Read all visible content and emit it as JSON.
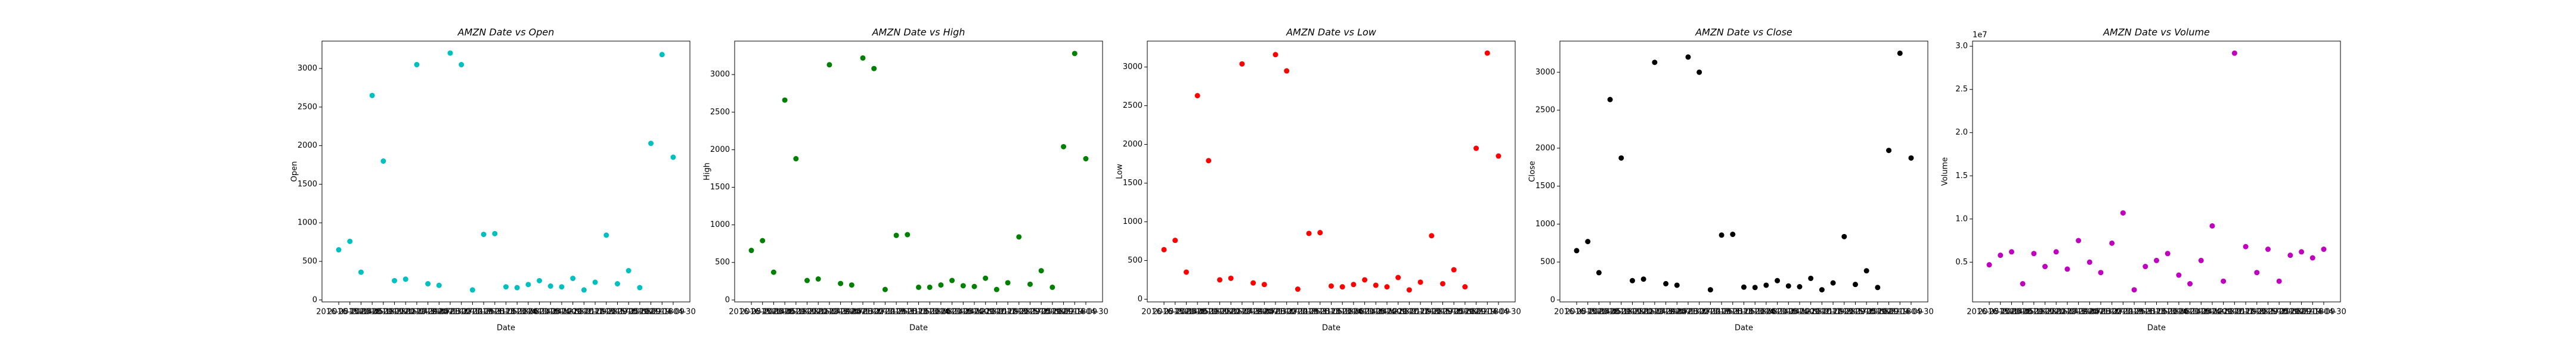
{
  "chart_data": [
    {
      "type": "scatter",
      "title": "AMZN Date vs Open",
      "xlabel": "Date",
      "ylabel": "Open",
      "color": "#00bfbf",
      "categories": [
        "2016-05-20",
        "2016-10-14",
        "2015-06-05",
        "2020-06-18",
        "2018-09-28",
        "2010-07-16",
        "2011-02-04",
        "2020-07-30",
        "2012-09-07",
        "2012-04-13",
        "2020-08-27",
        "2021-02-11",
        "2010-02-26",
        "2017-03-31",
        "2017-05-05",
        "2011-11-18",
        "2013-02-08",
        "2013-06-14",
        "2014-01-24",
        "2011-08-12",
        "2010-12-03",
        "2014-11-21",
        "2009-10-09",
        "2012-12-28",
        "2017-02-17",
        "2013-09-20",
        "2015-05-08",
        "2010-10-22",
        "2019-09-13",
        "2021-04-09",
        "2019-04-30"
      ],
      "values": [
        650,
        760,
        360,
        2650,
        1800,
        250,
        270,
        3050,
        210,
        190,
        3200,
        3050,
        130,
        850,
        860,
        170,
        160,
        200,
        250,
        180,
        170,
        280,
        130,
        230,
        840,
        210,
        380,
        160,
        2030,
        3180,
        1850
      ],
      "ylim": [
        -25,
        3355
      ],
      "yticks": [
        0,
        500,
        1000,
        1500,
        2000,
        2500,
        3000
      ]
    },
    {
      "type": "scatter",
      "title": "AMZN Date vs High",
      "xlabel": "Date",
      "ylabel": "High",
      "color": "#008000",
      "categories": [
        "2016-05-20",
        "2016-10-14",
        "2015-06-05",
        "2020-06-18",
        "2018-09-28",
        "2010-07-16",
        "2011-02-04",
        "2020-07-30",
        "2012-09-07",
        "2012-04-13",
        "2020-08-27",
        "2021-02-11",
        "2010-02-26",
        "2017-03-31",
        "2017-05-05",
        "2011-11-18",
        "2013-02-08",
        "2013-06-14",
        "2014-01-24",
        "2011-08-12",
        "2010-12-03",
        "2014-11-21",
        "2009-10-09",
        "2012-12-28",
        "2017-02-17",
        "2013-09-20",
        "2015-05-08",
        "2010-10-22",
        "2019-09-13",
        "2021-04-09",
        "2019-04-30"
      ],
      "values": [
        660,
        790,
        370,
        2660,
        1880,
        260,
        280,
        3130,
        220,
        200,
        3220,
        3080,
        140,
        860,
        870,
        170,
        170,
        200,
        260,
        190,
        180,
        290,
        140,
        230,
        840,
        210,
        390,
        170,
        2040,
        3280,
        1880
      ],
      "ylim": [
        -25,
        3445
      ],
      "yticks": [
        0,
        500,
        1000,
        1500,
        2000,
        2500,
        3000
      ]
    },
    {
      "type": "scatter",
      "title": "AMZN Date vs Low",
      "xlabel": "Date",
      "ylabel": "Low",
      "color": "#ff0000",
      "categories": [
        "2016-05-20",
        "2016-10-14",
        "2015-06-05",
        "2020-06-18",
        "2018-09-28",
        "2010-07-16",
        "2011-02-04",
        "2020-07-30",
        "2012-09-07",
        "2012-04-13",
        "2020-08-27",
        "2021-02-11",
        "2010-02-26",
        "2017-03-31",
        "2017-05-05",
        "2011-11-18",
        "2013-02-08",
        "2013-06-14",
        "2014-01-24",
        "2011-08-12",
        "2010-12-03",
        "2014-11-21",
        "2009-10-09",
        "2012-12-28",
        "2017-02-17",
        "2013-09-20",
        "2015-05-08",
        "2010-10-22",
        "2019-09-13",
        "2021-04-09",
        "2019-04-30"
      ],
      "values": [
        640,
        760,
        350,
        2630,
        1790,
        250,
        270,
        3040,
        210,
        190,
        3160,
        2950,
        130,
        850,
        860,
        170,
        160,
        190,
        250,
        180,
        160,
        280,
        120,
        220,
        820,
        200,
        380,
        160,
        1950,
        3180,
        1850
      ],
      "ylim": [
        -35,
        3335
      ],
      "yticks": [
        0,
        500,
        1000,
        1500,
        2000,
        2500,
        3000
      ]
    },
    {
      "type": "scatter",
      "title": "AMZN Date vs Close",
      "xlabel": "Date",
      "ylabel": "Close",
      "color": "#000000",
      "categories": [
        "2016-05-20",
        "2016-10-14",
        "2015-06-05",
        "2020-06-18",
        "2018-09-28",
        "2010-07-16",
        "2011-02-04",
        "2020-07-30",
        "2012-09-07",
        "2012-04-13",
        "2020-08-27",
        "2021-02-11",
        "2010-02-26",
        "2017-03-31",
        "2017-05-05",
        "2011-11-18",
        "2013-02-08",
        "2013-06-14",
        "2014-01-24",
        "2011-08-12",
        "2010-12-03",
        "2014-11-21",
        "2009-10-09",
        "2012-12-28",
        "2017-02-17",
        "2013-09-20",
        "2015-05-08",
        "2010-10-22",
        "2019-09-13",
        "2021-04-09",
        "2019-04-30"
      ],
      "values": [
        650,
        770,
        360,
        2640,
        1870,
        255,
        275,
        3130,
        215,
        195,
        3200,
        3000,
        135,
        855,
        865,
        170,
        165,
        195,
        255,
        185,
        175,
        285,
        135,
        225,
        835,
        205,
        385,
        165,
        1970,
        3250,
        1870
      ],
      "ylim": [
        -25,
        3410
      ],
      "yticks": [
        0,
        500,
        1000,
        1500,
        2000,
        2500,
        3000
      ]
    },
    {
      "type": "scatter",
      "title": "AMZN Date vs Volume",
      "xlabel": "Date",
      "ylabel": "Volume",
      "color": "#bf00bf",
      "offset_label": "1e7",
      "categories": [
        "2016-05-20",
        "2016-10-14",
        "2015-06-05",
        "2020-06-18",
        "2018-09-28",
        "2010-07-16",
        "2011-02-04",
        "2020-07-30",
        "2012-09-07",
        "2012-04-13",
        "2020-08-27",
        "2021-02-11",
        "2010-02-26",
        "2017-03-31",
        "2017-05-05",
        "2011-11-18",
        "2013-02-08",
        "2013-06-14",
        "2014-01-24",
        "2011-08-12",
        "2010-12-03",
        "2014-11-21",
        "2009-10-09",
        "2012-12-28",
        "2017-02-17",
        "2013-09-20",
        "2015-05-08",
        "2010-10-22",
        "2019-09-13",
        "2021-04-09",
        "2019-04-30"
      ],
      "values": [
        0.47,
        0.58,
        0.62,
        0.25,
        0.6,
        0.45,
        0.62,
        0.42,
        0.75,
        0.5,
        0.38,
        0.72,
        1.07,
        0.18,
        0.45,
        0.52,
        0.6,
        0.35,
        0.25,
        0.52,
        0.92,
        0.28,
        2.92,
        0.68,
        0.38,
        0.65,
        0.28,
        0.58,
        0.62,
        0.55,
        0.65
      ],
      "ylim": [
        0.04,
        3.06
      ],
      "yticks": [
        0.5,
        {
          "value": 1,
          "label": "1.0"
        },
        1.5,
        {
          "value": 2,
          "label": "2.0"
        },
        2.5,
        {
          "value": 3,
          "label": "3.0"
        }
      ]
    }
  ]
}
